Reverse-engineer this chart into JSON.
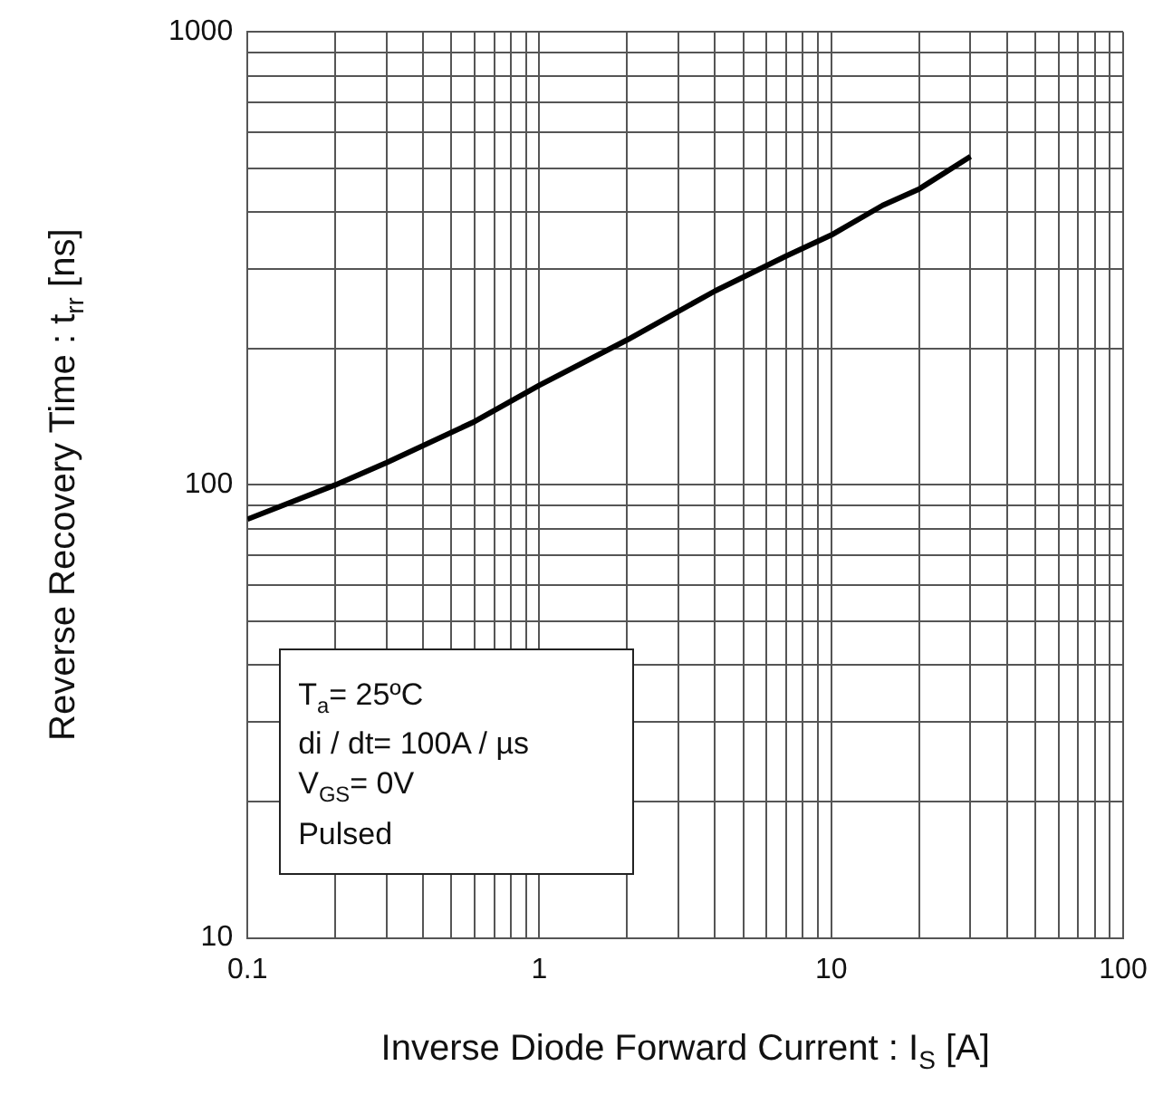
{
  "chart_data": {
    "type": "line",
    "xlabel": "Inverse Diode Forward Current : I$_{S}$ [A]",
    "ylabel": "Reverse Recovery Time : t$_{rr}$ [ns]",
    "x": [
      0.1,
      0.2,
      0.3,
      0.6,
      1,
      2,
      4,
      7,
      10,
      15,
      20,
      30
    ],
    "series": [
      {
        "color": "#000000",
        "values": [
          84,
          100,
          112,
          138,
          166,
          209,
          268,
          320,
          356,
          414,
          450,
          531
        ]
      }
    ],
    "log": "xy",
    "xlim": [
      0.1,
      100
    ],
    "ylim": [
      10,
      1000
    ],
    "xticks": [
      0.1,
      {
        "value": 0.2,
        "label": null
      },
      {
        "value": 0.3,
        "label": null
      },
      {
        "value": 0.4,
        "label": null
      },
      {
        "value": 0.5,
        "label": null
      },
      {
        "value": 0.6,
        "label": null
      },
      {
        "value": 0.7,
        "label": null
      },
      {
        "value": 0.8,
        "label": null
      },
      {
        "value": 0.9,
        "label": null
      },
      1,
      {
        "value": 2,
        "label": null
      },
      {
        "value": 3,
        "label": null
      },
      {
        "value": 4,
        "label": null
      },
      {
        "value": 5,
        "label": null
      },
      {
        "value": 6,
        "label": null
      },
      {
        "value": 7,
        "label": null
      },
      {
        "value": 8,
        "label": null
      },
      {
        "value": 9,
        "label": null
      },
      10,
      {
        "value": 20,
        "label": null
      },
      {
        "value": 30,
        "label": null
      },
      {
        "value": 40,
        "label": null
      },
      {
        "value": 50,
        "label": null
      },
      {
        "value": 60,
        "label": null
      },
      {
        "value": 70,
        "label": null
      },
      {
        "value": 80,
        "label": null
      },
      {
        "value": 90,
        "label": null
      },
      100
    ],
    "yticks": [
      10,
      {
        "value": 20,
        "label": null
      },
      {
        "value": 30,
        "label": null
      },
      {
        "value": 40,
        "label": null
      },
      {
        "value": 50,
        "label": null
      },
      {
        "value": 60,
        "label": null
      },
      {
        "value": 70,
        "label": null
      },
      {
        "value": 80,
        "label": null
      },
      {
        "value": 90,
        "label": null
      },
      100,
      {
        "value": 200,
        "label": null
      },
      {
        "value": 300,
        "label": null
      },
      {
        "value": 400,
        "label": null
      },
      {
        "value": 500,
        "label": null
      },
      {
        "value": 600,
        "label": null
      },
      {
        "value": 700,
        "label": null
      },
      {
        "value": 800,
        "label": null
      },
      {
        "value": 900,
        "label": null
      },
      1000
    ],
    "grid": true,
    "legend": false,
    "marker": "none",
    "line_style": "solid",
    "annotations": [
      "T$_{a}$= 25ºC",
      "di / dt= 100A / µs",
      "V$_{GS}$= 0V",
      "Pulsed"
    ]
  }
}
